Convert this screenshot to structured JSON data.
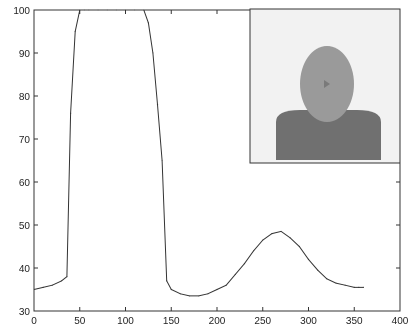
{
  "chart_data": {
    "type": "line",
    "title": "",
    "xlabel": "",
    "ylabel": "",
    "xlim": [
      0,
      400
    ],
    "ylim": [
      30,
      100
    ],
    "x_ticks": [
      0,
      50,
      100,
      150,
      200,
      250,
      300,
      350,
      400
    ],
    "y_ticks": [
      30,
      40,
      50,
      60,
      70,
      80,
      90,
      100
    ],
    "x_tick_labels": [
      "0",
      "50",
      "100",
      "150",
      "200",
      "250",
      "300",
      "350",
      "400"
    ],
    "y_tick_labels": [
      "30",
      "40",
      "50",
      "60",
      "70",
      "80",
      "90",
      "100"
    ],
    "grid": false,
    "legend": "none",
    "series": [
      {
        "color": "#333333",
        "x": [
          0,
          10,
          20,
          30,
          36,
          40,
          45,
          50,
          55,
          60,
          70,
          80,
          90,
          100,
          110,
          120,
          125,
          130,
          135,
          140,
          145,
          150,
          160,
          170,
          180,
          190,
          200,
          210,
          220,
          230,
          240,
          250,
          260,
          270,
          280,
          290,
          300,
          310,
          320,
          330,
          340,
          350,
          355,
          360
        ],
        "y": [
          35,
          35.5,
          36,
          37,
          38,
          76,
          95,
          100,
          100,
          100,
          100,
          100,
          100,
          100,
          100,
          100,
          97,
          90,
          78,
          65,
          37,
          35,
          34,
          33.5,
          33.5,
          34,
          35,
          36,
          38.5,
          41,
          44,
          46.5,
          48,
          48.5,
          47,
          45,
          42,
          39.5,
          37.5,
          36.5,
          36,
          35.5,
          35.5,
          35.5
        ]
      }
    ]
  },
  "inset": {
    "background_color": "#f2f2f2",
    "head_color": "#9a9a9a",
    "body_color": "#707070",
    "icon": "person-silhouette-icon"
  }
}
